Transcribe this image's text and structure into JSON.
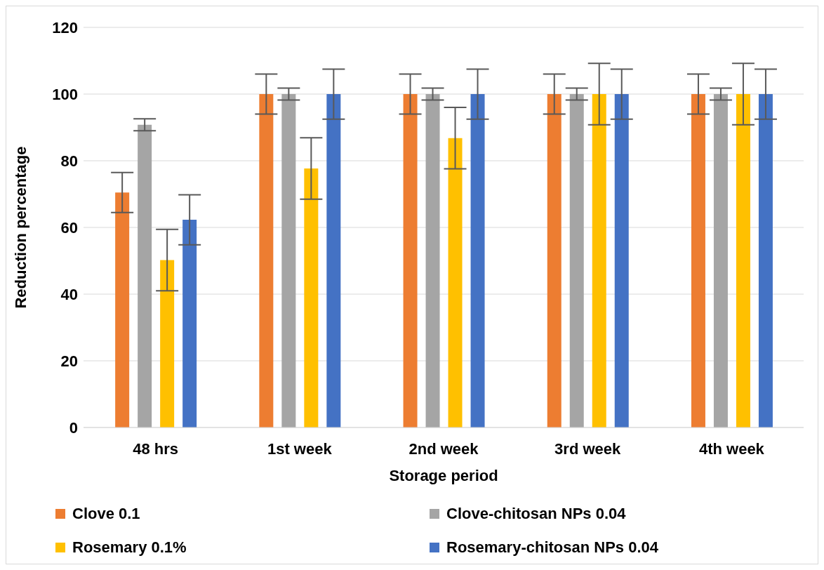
{
  "chart_data": {
    "type": "bar",
    "xlabel": "Storage period",
    "ylabel": "Reduction percentage",
    "categories": [
      "48 hrs",
      "1st week",
      "2nd week",
      "3rd week",
      "4th week"
    ],
    "series": [
      {
        "name": "Clove 0.1",
        "color": "#ed7d31",
        "values": [
          70.5,
          100,
          100,
          100,
          100
        ],
        "errors": [
          6,
          6,
          6,
          6,
          6
        ]
      },
      {
        "name": "Clove-chitosan NPs 0.04",
        "color": "#a5a5a5",
        "values": [
          90.8,
          100,
          100,
          100,
          100
        ],
        "errors": [
          1.8,
          1.8,
          1.8,
          1.8,
          1.8
        ]
      },
      {
        "name": "Rosemary 0.1%",
        "color": "#ffc000",
        "values": [
          50.2,
          77.7,
          86.8,
          100,
          100
        ],
        "errors": [
          9.2,
          9.2,
          9.2,
          9.2,
          9.2
        ]
      },
      {
        "name": "Rosemary-chitosan NPs 0.04",
        "color": "#4472c4",
        "values": [
          62.3,
          100,
          100,
          100,
          100
        ],
        "errors": [
          7.5,
          7.5,
          7.5,
          7.5,
          7.5
        ]
      }
    ],
    "ylim": [
      0,
      120
    ],
    "yticks": [
      0,
      20,
      40,
      60,
      80,
      100,
      120
    ],
    "grid": "y",
    "legend": "bottom"
  }
}
